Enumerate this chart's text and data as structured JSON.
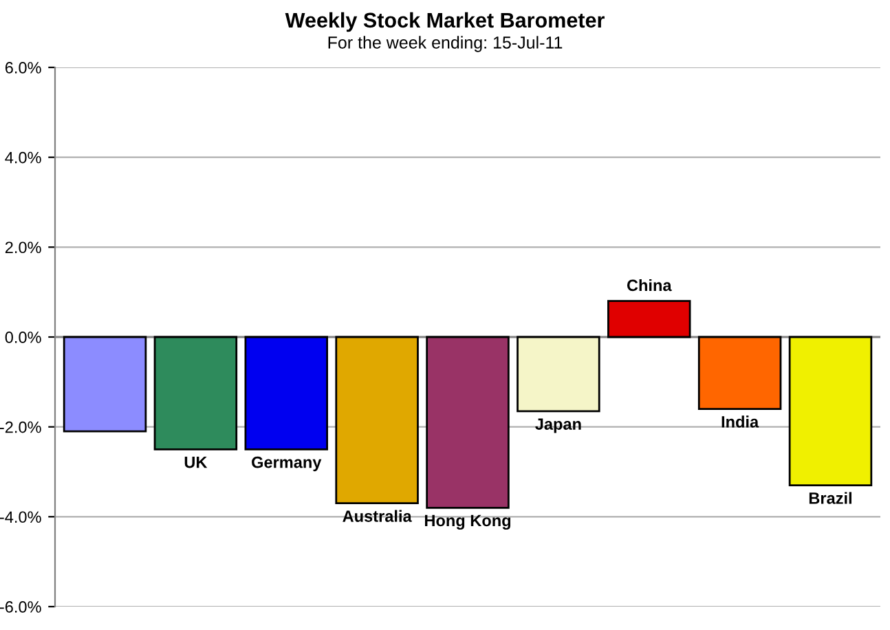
{
  "chart_data": {
    "type": "bar",
    "title": "Weekly Stock Market Barometer",
    "subtitle": "For the week ending: 15-Jul-11",
    "categories": [
      null,
      "UK",
      "Germany",
      "Australia",
      "Hong Kong",
      "Japan",
      "China",
      "India",
      "Brazil"
    ],
    "values": [
      -2.1,
      -2.5,
      -2.5,
      -3.7,
      -3.8,
      -1.65,
      0.8,
      -1.6,
      -3.3
    ],
    "colors": [
      "#8c8cff",
      "#2e8b5c",
      "#0000f0",
      "#e0a800",
      "#993366",
      "#f5f5c8",
      "#e00000",
      "#ff6600",
      "#f0f000"
    ],
    "ylim": [
      -6,
      6
    ],
    "yticks": [
      {
        "value": -6,
        "label": "-6.0%"
      },
      {
        "value": -4,
        "label": "-4.0%"
      },
      {
        "value": -2,
        "label": "-2.0%"
      },
      {
        "value": 0,
        "label": "0.0%"
      },
      {
        "value": 2,
        "label": "2.0%"
      },
      {
        "value": 4,
        "label": "4.0%"
      },
      {
        "value": 6,
        "label": "6.0%"
      }
    ],
    "grid": "y",
    "tick_labels": "y"
  }
}
